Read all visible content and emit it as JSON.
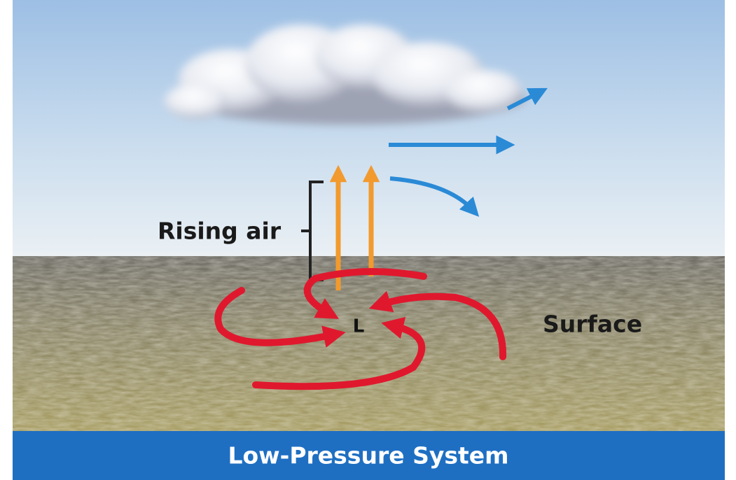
{
  "labels": {
    "rising_air": "Rising air",
    "center": "L",
    "surface": "Surface",
    "title": "Low-Pressure System"
  }
}
